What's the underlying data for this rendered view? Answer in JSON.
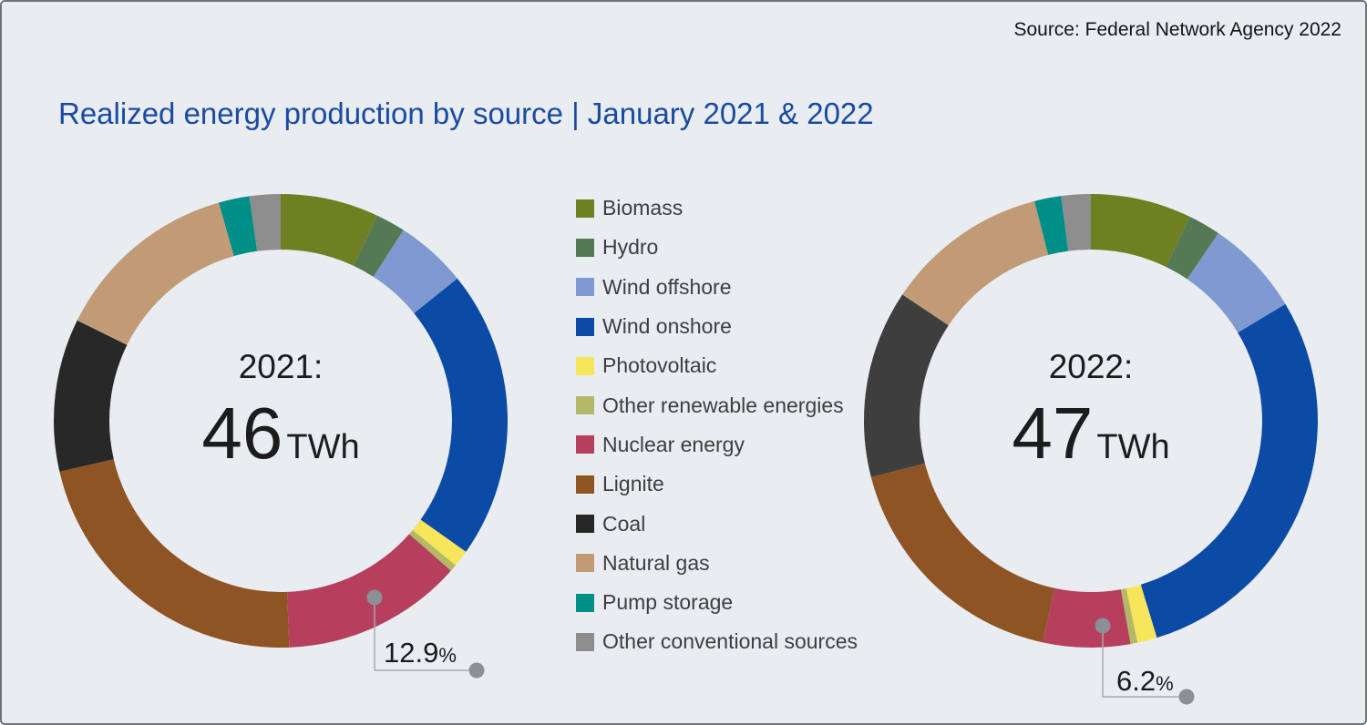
{
  "source": "Source: Federal Network Agency 2022",
  "title": "Realized energy production by source | January 2021 & 2022",
  "legend": {
    "items": [
      {
        "label": "Biomass",
        "color": "#6f8022"
      },
      {
        "label": "Hydro",
        "color": "#557952"
      },
      {
        "label": "Wind offshore",
        "color": "#7f99d1"
      },
      {
        "label": "Wind onshore",
        "color": "#0c4ba5"
      },
      {
        "label": "Photovoltaic",
        "color": "#f7e55a"
      },
      {
        "label": "Other renewable energies",
        "color": "#b3b967"
      },
      {
        "label": "Nuclear energy",
        "color": "#b53f5c"
      },
      {
        "label": "Lignite",
        "color": "#8f5424"
      },
      {
        "label": "Coal",
        "color": "#262626"
      },
      {
        "label": "Natural gas",
        "color": "#c19b75"
      },
      {
        "label": "Pump storage",
        "color": "#008f88"
      },
      {
        "label": "Other conventional sources",
        "color": "#8d8d8d"
      }
    ]
  },
  "chart_data": {
    "type": "donut",
    "title": "Realized energy production by source | January 2021 & 2022",
    "legend_position": "center-between-donuts",
    "categories": [
      "Biomass",
      "Hydro",
      "Wind offshore",
      "Wind onshore",
      "Photovoltaic",
      "Other renewable energies",
      "Nuclear energy",
      "Lignite",
      "Coal",
      "Natural gas",
      "Pump storage",
      "Other conventional sources"
    ],
    "series": [
      {
        "name": "January 2021",
        "center_line1": "2021:",
        "total": "46",
        "unit": "TWh",
        "values_percent": [
          7.0,
          2.1,
          5.1,
          20.6,
          1.2,
          0.5,
          12.9,
          22.0,
          10.9,
          13.3,
          2.2,
          2.2
        ],
        "colors": [
          "#6f8022",
          "#557952",
          "#7f99d1",
          "#0c4ba5",
          "#f7e55a",
          "#b3b967",
          "#b53f5c",
          "#8f5424",
          "#282828",
          "#c19b75",
          "#008f88",
          "#8d8d8d"
        ],
        "callout": {
          "value": "12.9",
          "unit": "%",
          "category": "Nuclear energy"
        }
      },
      {
        "name": "January 2022",
        "center_line1": "2022:",
        "total": "47",
        "unit": "TWh",
        "values_percent": [
          7.2,
          2.3,
          6.9,
          28.9,
          1.4,
          0.5,
          6.2,
          17.6,
          13.4,
          11.6,
          1.9,
          2.1
        ],
        "colors": [
          "#6f8022",
          "#557952",
          "#7f99d1",
          "#0c4ba5",
          "#f7e55a",
          "#b3b967",
          "#b53f5c",
          "#8f5424",
          "#3e3e3e",
          "#c19b75",
          "#008f88",
          "#8d8d8d"
        ],
        "callout": {
          "value": "6.2",
          "unit": "%",
          "category": "Nuclear energy"
        }
      }
    ]
  }
}
